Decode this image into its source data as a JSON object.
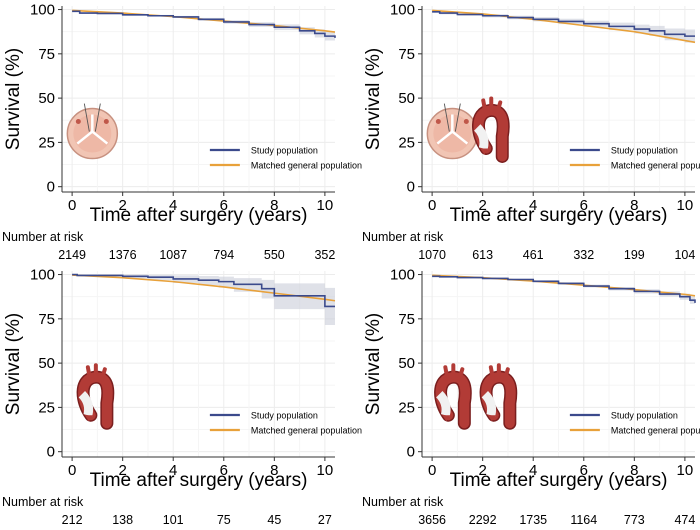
{
  "figure": {
    "risk_label": "Number at risk",
    "colors": {
      "study": "#3b4a8c",
      "general": "#e8a13a",
      "ci_band": "#c9cdd8",
      "grid": "#ececec",
      "axis": "#333333"
    }
  },
  "chart_data": [
    {
      "type": "line",
      "ylabel": "Survival (%)",
      "xlabel": "Time after surgery (years)",
      "xlim": [
        -0.4,
        10.4
      ],
      "ylim": [
        -3,
        102
      ],
      "x_ticks": [
        0,
        2,
        4,
        6,
        8,
        10
      ],
      "y_ticks": [
        0,
        25,
        50,
        75,
        100
      ],
      "grid": true,
      "legend_position": "center-right",
      "icon": "valve-only",
      "series": [
        {
          "name": "Study population",
          "key": "study",
          "step": true,
          "x": [
            0,
            0.3,
            1,
            2,
            3,
            4,
            5,
            6,
            7,
            8,
            9,
            9.6,
            10,
            10.4
          ],
          "y": [
            99,
            98,
            97.8,
            97,
            96.5,
            95.8,
            94.5,
            93,
            91.5,
            90,
            88,
            86.5,
            85,
            84
          ],
          "ci_upper": [
            99.3,
            98.5,
            98.2,
            97.5,
            97,
            96.4,
            95.3,
            94,
            92.8,
            91.6,
            90,
            88.8,
            87.5,
            86.8
          ],
          "ci_lower": [
            98.7,
            97.5,
            97.3,
            96.5,
            96,
            95.2,
            93.7,
            92,
            90.2,
            88.4,
            86,
            84.2,
            82.5,
            81.2
          ]
        },
        {
          "name": "Matched general population",
          "key": "general",
          "step": false,
          "x": [
            0,
            2,
            4,
            6,
            8,
            10,
            10.4
          ],
          "y": [
            99.5,
            98,
            96,
            93.5,
            91,
            88,
            87.3
          ]
        }
      ],
      "risk_table": {
        "times": [
          0,
          2,
          4,
          6,
          8,
          10
        ],
        "counts": [
          "2149",
          "1376",
          "1087",
          "794",
          "550",
          "352"
        ]
      }
    },
    {
      "type": "line",
      "ylabel": "Survival (%)",
      "xlabel": "Time after surgery (years)",
      "xlim": [
        -0.4,
        10.4
      ],
      "ylim": [
        -3,
        102
      ],
      "x_ticks": [
        0,
        2,
        4,
        6,
        8,
        10
      ],
      "y_ticks": [
        0,
        25,
        50,
        75,
        100
      ],
      "grid": true,
      "legend_position": "center-right",
      "icon": "valve-and-aorta",
      "series": [
        {
          "name": "Study population",
          "key": "study",
          "step": true,
          "x": [
            0,
            0.3,
            1,
            2,
            3,
            4,
            5,
            6,
            7,
            8,
            8.6,
            9.2,
            10,
            10.4
          ],
          "y": [
            98.7,
            98,
            97.2,
            96.5,
            95.5,
            94.5,
            93.3,
            92,
            90.5,
            89,
            88,
            86,
            85,
            85
          ],
          "ci_upper": [
            99.2,
            98.7,
            98,
            97.4,
            96.5,
            95.7,
            94.8,
            93.7,
            92.6,
            91.5,
            90.8,
            89.3,
            88.7,
            88.7
          ],
          "ci_lower": [
            98.2,
            97.3,
            96.4,
            95.6,
            94.5,
            93.3,
            91.8,
            90.3,
            88.4,
            86.5,
            85.2,
            82.7,
            81.3,
            81.3
          ]
        },
        {
          "name": "Matched general population",
          "key": "general",
          "step": false,
          "x": [
            0,
            2,
            4,
            6,
            8,
            10,
            10.4
          ],
          "y": [
            99.5,
            97.5,
            94.5,
            91,
            87.5,
            82.5,
            81.5
          ]
        }
      ],
      "risk_table": {
        "times": [
          0,
          2,
          4,
          6,
          8,
          10
        ],
        "counts": [
          "1070",
          "613",
          "461",
          "332",
          "199",
          "104"
        ]
      }
    },
    {
      "type": "line",
      "ylabel": "Survival (%)",
      "xlabel": "Time after surgery (years)",
      "xlim": [
        -0.4,
        10.4
      ],
      "ylim": [
        -3,
        102
      ],
      "x_ticks": [
        0,
        2,
        4,
        6,
        8,
        10
      ],
      "y_ticks": [
        0,
        25,
        50,
        75,
        100
      ],
      "grid": true,
      "legend_position": "center-right",
      "icon": "aorta-only",
      "series": [
        {
          "name": "Study population",
          "key": "study",
          "step": true,
          "x": [
            0,
            0.2,
            1,
            2,
            3,
            4,
            5,
            5.8,
            6.4,
            7.5,
            8,
            9.5,
            10,
            10.4
          ],
          "y": [
            100,
            99.5,
            99.5,
            99,
            98.5,
            97.5,
            96.8,
            96,
            94.5,
            92,
            88,
            88,
            82,
            82
          ],
          "ci_upper": [
            100,
            100,
            100,
            100,
            99.8,
            99.5,
            99.2,
            98.8,
            98,
            97,
            95,
            95,
            92.5,
            92.5
          ],
          "ci_lower": [
            100,
            99,
            98.8,
            97.8,
            96.8,
            95.2,
            94,
            92.6,
            90.3,
            86.5,
            80.5,
            80.5,
            71.5,
            71.5
          ]
        },
        {
          "name": "Matched general population",
          "key": "general",
          "step": false,
          "x": [
            0,
            2,
            4,
            6,
            8,
            10,
            10.4
          ],
          "y": [
            99.7,
            98.2,
            96,
            93,
            89.5,
            86,
            85.2
          ]
        }
      ],
      "risk_table": {
        "times": [
          0,
          2,
          4,
          6,
          8,
          10
        ],
        "counts": [
          "212",
          "138",
          "101",
          "75",
          "45",
          "27"
        ]
      }
    },
    {
      "type": "line",
      "ylabel": "Survival (%)",
      "xlabel": "Time after surgery (years)",
      "xlim": [
        -0.4,
        10.4
      ],
      "ylim": [
        -3,
        102
      ],
      "x_ticks": [
        0,
        2,
        4,
        6,
        8,
        10
      ],
      "y_ticks": [
        0,
        25,
        50,
        75,
        100
      ],
      "grid": true,
      "legend_position": "center-right",
      "icon": "two-aortas",
      "series": [
        {
          "name": "Study population",
          "key": "study",
          "step": true,
          "x": [
            0,
            0.3,
            1,
            2,
            3,
            4,
            5,
            6,
            7,
            8,
            9,
            9.8,
            10.2,
            10.4
          ],
          "y": [
            99,
            98.7,
            98.3,
            97.8,
            97.2,
            96.2,
            95,
            93.5,
            92,
            90.5,
            89,
            87.5,
            85.5,
            84
          ],
          "ci_upper": [
            99.2,
            99,
            98.7,
            98.2,
            97.7,
            96.8,
            95.7,
            94.3,
            93,
            91.7,
            90.5,
            89.2,
            87.5,
            86.3
          ],
          "ci_lower": [
            98.8,
            98.4,
            97.9,
            97.4,
            96.7,
            95.6,
            94.3,
            92.7,
            91,
            89.3,
            87.5,
            85.8,
            83.5,
            81.7
          ]
        },
        {
          "name": "Matched general population",
          "key": "general",
          "step": false,
          "x": [
            0,
            2,
            4,
            6,
            8,
            10,
            10.4
          ],
          "y": [
            99.6,
            98.2,
            96.3,
            94,
            91.5,
            88.8,
            88
          ]
        }
      ],
      "risk_table": {
        "times": [
          0,
          2,
          4,
          6,
          8,
          10
        ],
        "counts": [
          "3656",
          "2292",
          "1735",
          "1164",
          "773",
          "474"
        ]
      }
    }
  ]
}
